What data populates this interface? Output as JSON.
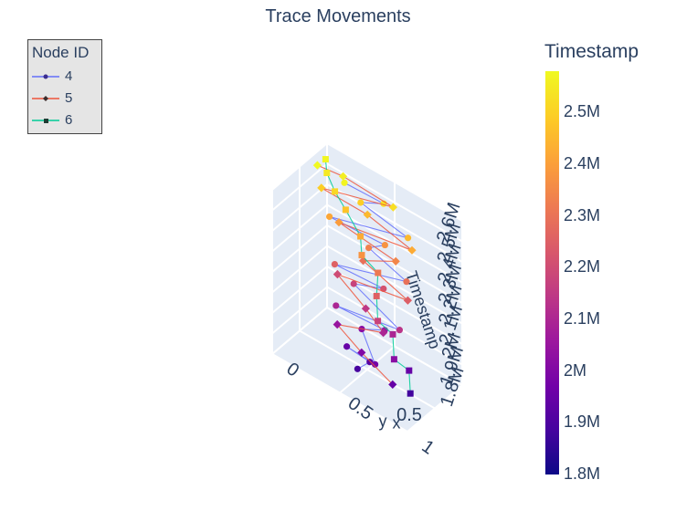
{
  "chart_data": {
    "type": "scatter3d",
    "title": "Trace Movements",
    "legend": {
      "title": "Node ID",
      "placement": "top-left",
      "items": [
        {
          "name": "4",
          "color": "#636efa"
        },
        {
          "name": "5",
          "color": "#ef553b"
        },
        {
          "name": "6",
          "color": "#00cc96"
        }
      ]
    },
    "axes": {
      "x": {
        "label": "x",
        "range": [
          0,
          1
        ],
        "ticks": [
          "0",
          "0.5",
          "1"
        ]
      },
      "y": {
        "label": "y",
        "range": [
          0,
          1
        ],
        "ticks": [
          "0.5"
        ]
      },
      "z": {
        "label": "Timestamp",
        "range": [
          1800000,
          2600000
        ],
        "ticks": [
          "1.8M",
          "1.9M",
          "2M",
          "2.1M",
          "2.2M",
          "2.3M",
          "2.4M",
          "2.5M",
          "2.6M"
        ]
      }
    },
    "colorbar": {
      "title": "Timestamp",
      "range": [
        1800000,
        2580000
      ],
      "colorscale": "plasma",
      "ticks": [
        {
          "label": "1.8M",
          "value": 1800000
        },
        {
          "label": "1.9M",
          "value": 1900000
        },
        {
          "label": "2M",
          "value": 2000000
        },
        {
          "label": "2.1M",
          "value": 2100000
        },
        {
          "label": "2.2M",
          "value": 2200000
        },
        {
          "label": "2.3M",
          "value": 2300000
        },
        {
          "label": "2.4M",
          "value": 2400000
        },
        {
          "label": "2.5M",
          "value": 2500000
        }
      ]
    },
    "series": [
      {
        "name": "4",
        "marker": "circle",
        "line_color": "#636efa",
        "points": [
          [
            0.55,
            0.8,
            1890000
          ],
          [
            0.6,
            0.7,
            1920000
          ],
          [
            0.45,
            0.75,
            1950000
          ],
          [
            0.7,
            0.85,
            1980000
          ],
          [
            0.5,
            0.6,
            2020000
          ],
          [
            0.65,
            0.55,
            2060000
          ],
          [
            0.35,
            0.7,
            2100000
          ],
          [
            0.8,
            0.65,
            2140000
          ],
          [
            0.4,
            0.5,
            2180000
          ],
          [
            0.6,
            0.45,
            2220000
          ],
          [
            0.3,
            0.6,
            2260000
          ],
          [
            0.75,
            0.4,
            2300000
          ],
          [
            0.45,
            0.35,
            2340000
          ],
          [
            0.55,
            0.3,
            2380000
          ],
          [
            0.2,
            0.45,
            2420000
          ],
          [
            0.7,
            0.25,
            2460000
          ],
          [
            0.35,
            0.25,
            2500000
          ],
          [
            0.5,
            0.2,
            2540000
          ],
          [
            0.25,
            0.3,
            2570000
          ]
        ]
      },
      {
        "name": "5",
        "marker": "diamond",
        "line_color": "#ef553b",
        "points": [
          [
            0.85,
            0.9,
            1950000
          ],
          [
            0.6,
            0.85,
            2000000
          ],
          [
            0.4,
            0.8,
            2050000
          ],
          [
            0.7,
            0.7,
            2100000
          ],
          [
            0.55,
            0.65,
            2150000
          ],
          [
            0.3,
            0.55,
            2200000
          ],
          [
            0.8,
            0.5,
            2250000
          ],
          [
            0.45,
            0.45,
            2300000
          ],
          [
            0.65,
            0.35,
            2350000
          ],
          [
            0.25,
            0.4,
            2400000
          ],
          [
            0.75,
            0.3,
            2430000
          ],
          [
            0.4,
            0.25,
            2460000
          ],
          [
            0.1,
            0.35,
            2500000
          ],
          [
            0.55,
            0.15,
            2530000
          ],
          [
            0.2,
            0.2,
            2560000
          ],
          [
            0.05,
            0.3,
            2580000
          ]
        ]
      },
      {
        "name": "6",
        "marker": "square",
        "line_color": "#00cc96",
        "points": [
          [
            0.9,
            0.7,
            1880000
          ],
          [
            0.85,
            0.6,
            1950000
          ],
          [
            0.8,
            0.75,
            2020000
          ],
          [
            0.75,
            0.65,
            2100000
          ],
          [
            0.7,
            0.8,
            2180000
          ],
          [
            0.65,
            0.7,
            2260000
          ],
          [
            0.6,
            0.55,
            2320000
          ],
          [
            0.5,
            0.6,
            2380000
          ],
          [
            0.45,
            0.5,
            2430000
          ],
          [
            0.3,
            0.4,
            2480000
          ],
          [
            0.2,
            0.35,
            2520000
          ],
          [
            0.1,
            0.25,
            2550000
          ],
          [
            0.05,
            0.15,
            2575000
          ]
        ]
      }
    ]
  }
}
